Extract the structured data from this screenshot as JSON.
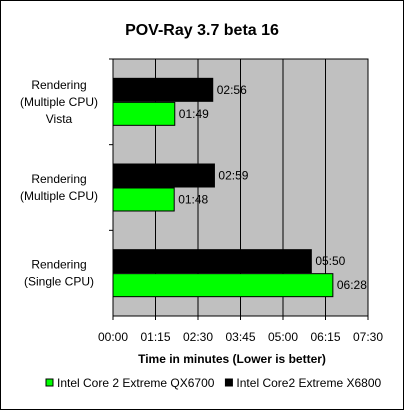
{
  "chart_data": {
    "type": "bar",
    "orientation": "horizontal",
    "title": "POV-Ray 3.7 beta 16",
    "xlabel": "Time in minutes (Lower is better)",
    "ylabel": "",
    "categories": [
      [
        "Rendering",
        "(Multiple CPU)",
        "Vista"
      ],
      [
        "Rendering",
        "(Multiple CPU)"
      ],
      [
        "Rendering",
        "(Single CPU)"
      ]
    ],
    "xlim": [
      0,
      450
    ],
    "x_ticks": [
      0,
      75,
      150,
      225,
      300,
      375,
      450
    ],
    "x_tick_labels": [
      "00:00",
      "01:15",
      "02:30",
      "03:45",
      "05:00",
      "06:15",
      "07:30"
    ],
    "series": [
      {
        "name": "Intel Core2 Extreme X6800",
        "color": "#000000",
        "values": [
          176,
          179,
          350
        ],
        "labels": [
          "02:56",
          "02:59",
          "05:50"
        ]
      },
      {
        "name": "Intel Core 2 Extreme QX6700",
        "color": "#00ff00",
        "values": [
          109,
          108,
          388
        ],
        "labels": [
          "01:49",
          "01:48",
          "06:28"
        ]
      }
    ],
    "legend": {
      "position": "bottom",
      "order": [
        "Intel Core 2 Extreme QX6700",
        "Intel Core2 Extreme X6800"
      ]
    },
    "grid": "vertical",
    "plot_background": "#c0c0c0"
  }
}
